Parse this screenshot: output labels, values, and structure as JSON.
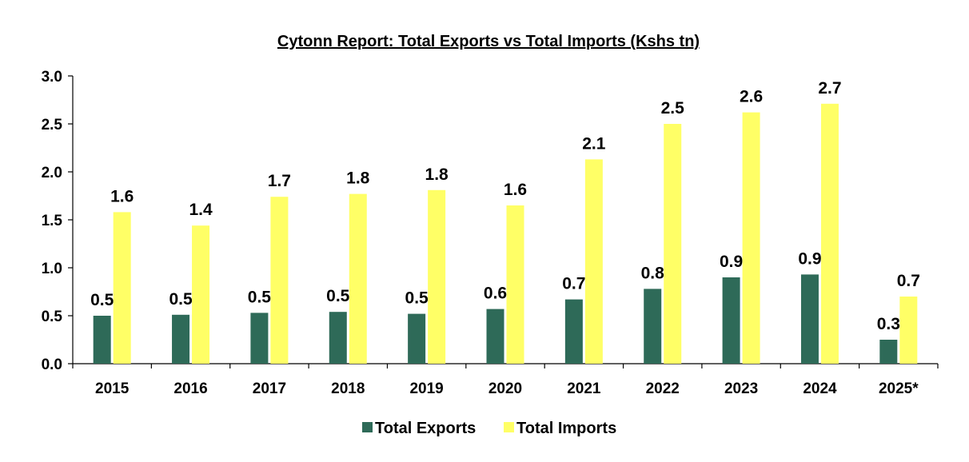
{
  "chart_data": {
    "type": "bar",
    "title": "Cytonn Report: Total Exports vs Total Imports (Kshs tn)",
    "categories": [
      "2015",
      "2016",
      "2017",
      "2018",
      "2019",
      "2020",
      "2021",
      "2022",
      "2023",
      "2024",
      "2025*"
    ],
    "series": [
      {
        "name": "Total Exports",
        "color": "#2e6a58",
        "values": [
          0.5,
          0.51,
          0.53,
          0.54,
          0.52,
          0.57,
          0.67,
          0.78,
          0.9,
          0.93,
          0.25
        ],
        "labels": [
          "0.5",
          "0.5",
          "0.5",
          "0.5",
          "0.5",
          "0.6",
          "0.7",
          "0.8",
          "0.9",
          "0.9",
          "0.3"
        ]
      },
      {
        "name": "Total Imports",
        "color": "#ffff66",
        "values": [
          1.58,
          1.44,
          1.74,
          1.77,
          1.81,
          1.65,
          2.13,
          2.5,
          2.62,
          2.71,
          0.7
        ],
        "labels": [
          "1.6",
          "1.4",
          "1.7",
          "1.8",
          "1.8",
          "1.6",
          "2.1",
          "2.5",
          "2.6",
          "2.7",
          "0.7"
        ]
      }
    ],
    "yticks": [
      "0.0",
      "0.5",
      "1.0",
      "1.5",
      "2.0",
      "2.5",
      "3.0"
    ],
    "ylim": [
      0,
      3.0
    ],
    "xlabel": "",
    "ylabel": "",
    "legend_position": "bottom-center",
    "grid": false
  }
}
